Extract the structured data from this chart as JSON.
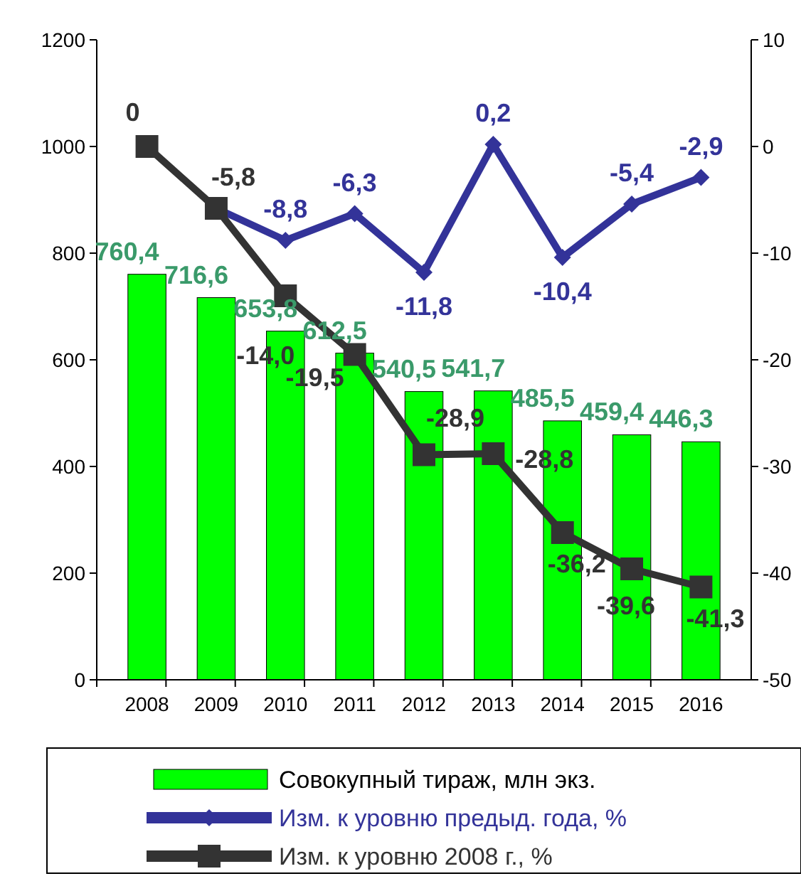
{
  "chart_data": {
    "type": "bar",
    "categories": [
      "2008",
      "2009",
      "2010",
      "2011",
      "2012",
      "2013",
      "2014",
      "2015",
      "2016"
    ],
    "series": [
      {
        "name": "Совокупный тираж, млн экз.",
        "color": "#00ff00",
        "values": [
          760.4,
          716.6,
          653.8,
          612.5,
          540.5,
          541.7,
          485.5,
          459.4,
          446.3
        ],
        "value_labels": [
          "760,4",
          "716,6",
          "653,8",
          "612,5",
          "540,5",
          "541,7",
          "485,5",
          "459,4",
          "446,3"
        ]
      },
      {
        "name": "Изм. к уровню предыд. года, %",
        "type": "line",
        "axis": "y2",
        "color": "#333399",
        "marker": "diamond",
        "values": [
          null,
          -5.8,
          -8.8,
          -6.3,
          -11.8,
          0.2,
          -10.4,
          -5.4,
          -2.9
        ],
        "value_labels": [
          null,
          null,
          "-8,8",
          "-6,3",
          "-11,8",
          "0,2",
          "-10,4",
          "-5,4",
          "-2,9"
        ]
      },
      {
        "name": "Изм. к уровню 2008 г., %",
        "type": "line",
        "axis": "y2",
        "color": "#333333",
        "marker": "square",
        "values": [
          0,
          -5.8,
          -14.0,
          -19.5,
          -28.9,
          -28.8,
          -36.2,
          -39.6,
          -41.3
        ],
        "value_labels": [
          "0",
          "-5,8",
          "-14,0",
          "-19,5",
          "-28,9",
          "-28,8",
          "-36,2",
          "-39,6",
          "-41,3"
        ]
      }
    ],
    "ylim": [
      0,
      1200
    ],
    "yticks": [
      0,
      200,
      400,
      600,
      800,
      1000,
      1200
    ],
    "y2lim": [
      -50,
      10
    ],
    "y2ticks": [
      -50,
      -40,
      -30,
      -20,
      -10,
      0,
      10
    ],
    "grid": false,
    "legend": "bottom"
  }
}
